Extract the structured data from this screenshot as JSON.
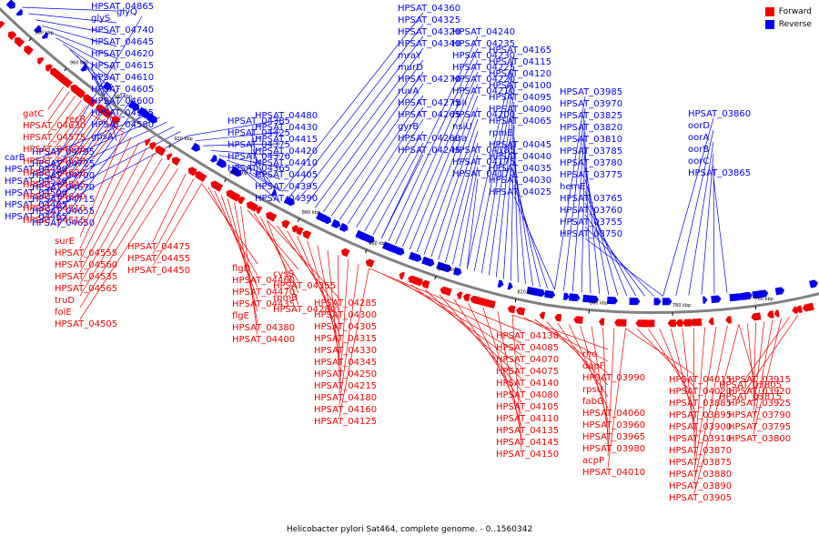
{
  "caption": "Helicobacter pylori Sat464, complete genome. - 0..1560342",
  "legend": [
    {
      "label": "Forward",
      "color": "#ee0000"
    },
    {
      "label": "Reverse",
      "color": "#0000ee"
    }
  ],
  "colors": {
    "forward": "#ee0000",
    "reverse": "#0000ee",
    "backbone": "#808080"
  },
  "ticks": [
    "980 kbp",
    "960 kbp",
    "940 kbp",
    "920 kbp",
    "900 kbp",
    "880 kbp",
    "860 kbp",
    "840 kbp",
    "820 kbp",
    "800 kbp",
    "780 kbp",
    "760 kbp"
  ],
  "reverse_labels": [
    "HPSAT_04865",
    "glyS",
    "HPSAT_04740",
    "HPSAT_04645",
    "HPSAT_04620",
    "HPSAT_04615",
    "HPSAT_04610",
    "HPSAT_04605",
    "HPSAT_04600",
    "HPSAT_04595",
    "HPSAT_04580",
    "gpsA",
    "glyQ",
    "HPSAT_04795",
    "HPSAT_04725",
    "HPSAT_04700",
    "HPSAT_04670",
    "HPSAT_04715",
    "HPSAT_04655",
    "HPSAT_04650",
    "carB",
    "HPSAT_04490",
    "HPSAT_04520",
    "HPSAT_04500",
    "HPSAT_04485",
    "HPSAT_04465",
    "HPSAT_04480",
    "HPSAT_04430",
    "HPSAT_04415",
    "HPSAT_04420",
    "HPSAT_04410",
    "HPSAT_04405",
    "HPSAT_04395",
    "HPSAT_04390",
    "HPSAT_04385",
    "HPSAT_04425",
    "HPSAT_04375",
    "HPSAT_04370",
    "HPSAT_04365",
    "HPSAT_04360",
    "HPSAT_04325",
    "HPSAT_04320",
    "HPSAT_04340",
    "mraY",
    "murD",
    "HPSAT_04270",
    "ruvA",
    "HPSAT_04275",
    "HPSAT_04265",
    "gyrB",
    "HPSAT_04260",
    "HPSAT_04245",
    "HPSAT_04240",
    "HPSAT_04235",
    "HPSAT_04230",
    "HPSAT_04225",
    "HPSAT_04220",
    "HPSAT_04210",
    "rplI",
    "HPSAT_04200",
    "nsiU",
    "era",
    "HPSAT_04185",
    "HPSAT_04175",
    "HPSAT_04170",
    "HPSAT_04165",
    "HPSAT_04115",
    "HPSAT_04120",
    "HPSAT_04100",
    "HPSAT_04095",
    "HPSAT_04090",
    "HPSAT_04065",
    "rpmE",
    "HPSAT_04045",
    "HPSAT_04040",
    "HPSAT_04035",
    "HPSAT_04030",
    "HPSAT_04025",
    "HPSAT_03985",
    "HPSAT_03970",
    "HPSAT_03825",
    "HPSAT_03820",
    "HPSAT_03810",
    "HPSAT_03785",
    "HPSAT_03780",
    "HPSAT_03775",
    "hemE",
    "HPSAT_03765",
    "HPSAT_03760",
    "HPSAT_03755",
    "HPSAT_03750",
    "HPSAT_03860",
    "oorD",
    "oorA",
    "oorB",
    "oorC",
    "HPSAT_03865"
  ],
  "forward_labels": [
    "gatC",
    "HPSAT_04630",
    "HPSAT_04575",
    "HPSAT_04635",
    "HPSAT_04570",
    "HPSAT_04625",
    "HPSAT_04545",
    "HPSAT_04640",
    "HPSAT_04510",
    "HPSAT_04515",
    "recR",
    "surE",
    "HPSAT_04555",
    "HPSAT_04560",
    "HPSAT_04535",
    "HPSAT_04565",
    "truD",
    "folE",
    "HPSAT_04505",
    "HPSAT_04475",
    "HPSAT_04455",
    "HPSAT_04450",
    "flgD",
    "HPSAT_04460",
    "HPSAT_04470",
    "HPSAT_04435",
    "flgE",
    "HPSAT_04380",
    "HPSAT_04400",
    "cysS",
    "HPSAT_04355",
    "rpmB",
    "HPSAT_04280",
    "HPSAT_04285",
    "HPSAT_04300",
    "HPSAT_04305",
    "HPSAT_04315",
    "HPSAT_04330",
    "HPSAT_04345",
    "HPSAT_04250",
    "HPSAT_04215",
    "HPSAT_04180",
    "HPSAT_04160",
    "HPSAT_04125",
    "HPSAT_04130",
    "HPSAT_04085",
    "HPSAT_04070",
    "HPSAT_04075",
    "HPSAT_04140",
    "HPSAT_04080",
    "HPSAT_04105",
    "HPSAT_04110",
    "HPSAT_04135",
    "HPSAT_04145",
    "HPSAT_04150",
    "rho",
    "dapF",
    "HPSAT_03990",
    "rpsU",
    "fabG",
    "HPSAT_04060",
    "HPSAT_03960",
    "HPSAT_03965",
    "HPSAT_03980",
    "acpP",
    "HPSAT_04010",
    "HPSAT_04015",
    "HPSAT_04020",
    "HPSAT_03885",
    "HPSAT_03895",
    "HPSAT_03900",
    "HPSAT_03910",
    "HPSAT_03870",
    "HPSAT_03875",
    "HPSAT_03880",
    "HPSAT_03890",
    "HPSAT_03905",
    "HPSAT_03915",
    "HPSAT_03920",
    "HPSAT_03925",
    "HPSAT_03790",
    "HPSAT_03795",
    "HPSAT_03800",
    "HPSAT_03805",
    "HPSAT_03815"
  ]
}
